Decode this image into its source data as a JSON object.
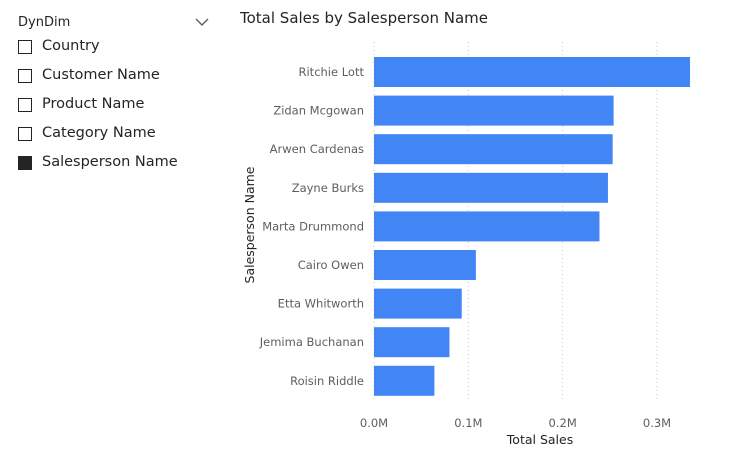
{
  "slicer": {
    "title": "DynDim",
    "chevron_icon": "chevron-down-icon",
    "items": [
      {
        "label": "Country",
        "checked": false
      },
      {
        "label": "Customer Name",
        "checked": false
      },
      {
        "label": "Product Name",
        "checked": false
      },
      {
        "label": "Category Name",
        "checked": false
      },
      {
        "label": "Salesperson Name",
        "checked": true
      }
    ]
  },
  "chart": {
    "title": "Total Sales by Salesperson Name"
  },
  "chart_data": {
    "type": "bar",
    "orientation": "horizontal",
    "title": "Total Sales by Salesperson Name",
    "xlabel": "Total Sales",
    "ylabel": "Salesperson Name",
    "bar_color": "#4285F4",
    "grid": true,
    "xlim": [
      0,
      0.34
    ],
    "x_ticks": [
      {
        "value": 0,
        "label": "0.0M"
      },
      {
        "value": 0.1,
        "label": "0.1M"
      },
      {
        "value": 0.2,
        "label": "0.2M"
      },
      {
        "value": 0.3,
        "label": "0.3M"
      }
    ],
    "categories": [
      "Ritchie Lott",
      "Zidan Mcgowan",
      "Arwen Cardenas",
      "Zayne Burks",
      "Marta Drummond",
      "Cairo Owen",
      "Etta Whitworth",
      "Jemima Buchanan",
      "Roisin Riddle"
    ],
    "values": [
      0.335,
      0.254,
      0.253,
      0.248,
      0.239,
      0.108,
      0.093,
      0.08,
      0.064
    ],
    "unit": "M"
  }
}
